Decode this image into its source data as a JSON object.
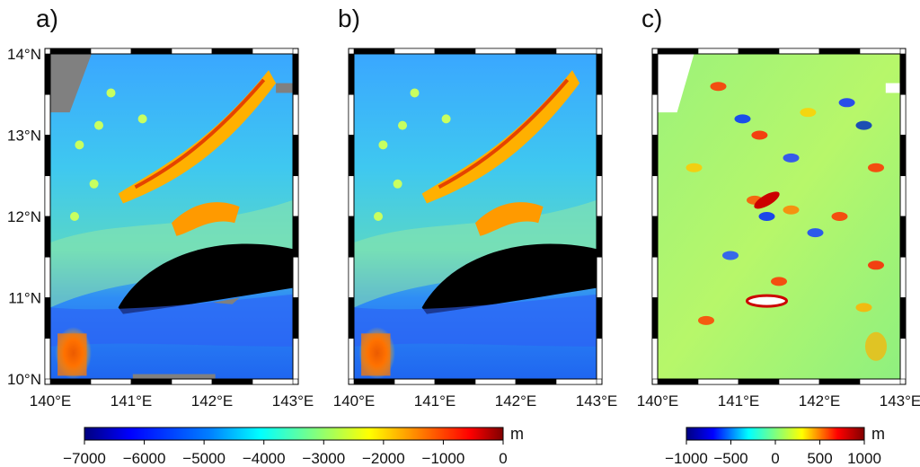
{
  "chart_data": [
    {
      "type": "heatmap",
      "panel_label": "a)",
      "x_ticks": [
        "140°E",
        "141°E",
        "142°E",
        "143°E"
      ],
      "y_ticks": [
        "10°N",
        "11°N",
        "12°N",
        "13°N",
        "14°N"
      ],
      "xlim": [
        140,
        143
      ],
      "ylim": [
        10,
        14
      ],
      "colorbar": "depth",
      "content": "bathymetry with gaps"
    },
    {
      "type": "heatmap",
      "panel_label": "b)",
      "x_ticks": [
        "140°E",
        "141°E",
        "142°E",
        "143°E"
      ],
      "xlim": [
        140,
        143
      ],
      "ylim": [
        10,
        14
      ],
      "colorbar": "depth",
      "content": "bathymetry"
    },
    {
      "type": "heatmap",
      "panel_label": "c)",
      "x_ticks": [
        "140°E",
        "141°E",
        "142°E",
        "143°E"
      ],
      "xlim": [
        140,
        143
      ],
      "ylim": [
        10,
        14
      ],
      "colorbar": "difference",
      "content": "difference"
    }
  ],
  "colorbars": {
    "depth": {
      "unit": "m",
      "range": [
        -7000,
        0
      ],
      "tick_values": [
        -7000,
        -6000,
        -5000,
        -4000,
        -3000,
        -2000,
        -1000,
        0
      ],
      "tick_labels": [
        "−7000",
        "−6000",
        "−5000",
        "−4000",
        "−3000",
        "−2000",
        "−1000",
        "0"
      ]
    },
    "difference": {
      "unit": "m",
      "range": [
        -1000,
        1000
      ],
      "tick_values": [
        -1000,
        -500,
        0,
        500,
        1000
      ],
      "tick_labels": [
        "−1000",
        "−500",
        "0",
        "500",
        "1000"
      ]
    }
  },
  "colors": {
    "jet": [
      "#00007f",
      "#0000ff",
      "#0080ff",
      "#00ffff",
      "#80ff80",
      "#ffff00",
      "#ff8000",
      "#ff0000",
      "#7f0000"
    ],
    "deep_trench": "#000000",
    "no_data": "#808080"
  }
}
